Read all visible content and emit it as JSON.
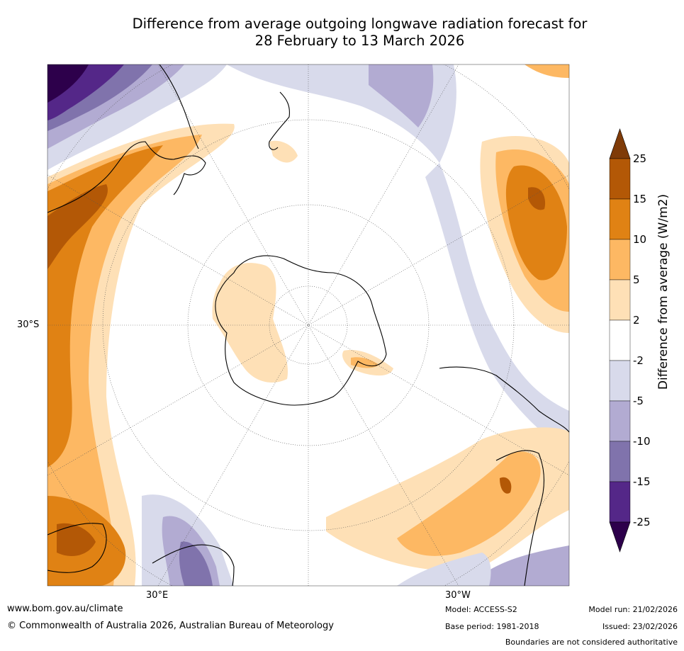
{
  "title": {
    "line1": "Difference from average outgoing longwave radiation forecast for",
    "line2": "28 February to 13 March 2026"
  },
  "map": {
    "projection": "south-polar-stereographic",
    "lat_label": "30°S",
    "lon_labels": [
      "30°E",
      "30°W"
    ]
  },
  "colorbar": {
    "title": "Difference from average (W/m2)",
    "levels": [
      "25",
      "15",
      "10",
      "5",
      "2",
      "-2",
      "-5",
      "-10",
      "-15",
      "-25"
    ],
    "colors": [
      "#7f3b08",
      "#b35806",
      "#e08214",
      "#fdb863",
      "#fee0b6",
      "#ffffff",
      "#d8daeb",
      "#b2abd2",
      "#8073ac",
      "#542788",
      "#2d004b"
    ]
  },
  "footer": {
    "website": "www.bom.gov.au/climate",
    "copyright": "© Commonwealth of Australia 2026, Australian Bureau of Meteorology",
    "model": "Model: ACCESS-S2",
    "base_period": "Base period: 1981-2018",
    "model_run": "Model run: 21/02/2026",
    "issued": "Issued: 23/02/2026",
    "disclaimer": "Boundaries are not considered authoritative"
  }
}
